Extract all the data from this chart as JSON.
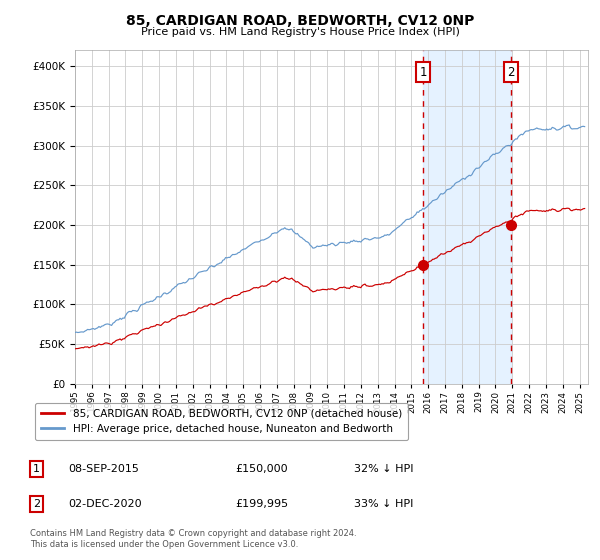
{
  "title1": "85, CARDIGAN ROAD, BEDWORTH, CV12 0NP",
  "title2": "Price paid vs. HM Land Registry's House Price Index (HPI)",
  "legend_red": "85, CARDIGAN ROAD, BEDWORTH, CV12 0NP (detached house)",
  "legend_blue": "HPI: Average price, detached house, Nuneaton and Bedworth",
  "point1_label": "1",
  "point1_date": "08-SEP-2015",
  "point1_price": "£150,000",
  "point1_hpi": "32% ↓ HPI",
  "point2_label": "2",
  "point2_date": "02-DEC-2020",
  "point2_price": "£199,995",
  "point2_hpi": "33% ↓ HPI",
  "footnote_line1": "Contains HM Land Registry data © Crown copyright and database right 2024.",
  "footnote_line2": "This data is licensed under the Open Government Licence v3.0.",
  "red_color": "#cc0000",
  "blue_color": "#6699cc",
  "shading_color": "#ddeeff",
  "grid_color": "#cccccc",
  "bg_color": "#ffffff",
  "ylim_max": 420000,
  "ylim_min": 0,
  "xlim_min": 1995,
  "xlim_max": 2025.5,
  "sale1_year": 2015.69,
  "sale1_price": 150000,
  "sale2_year": 2020.92,
  "sale2_price": 199995
}
